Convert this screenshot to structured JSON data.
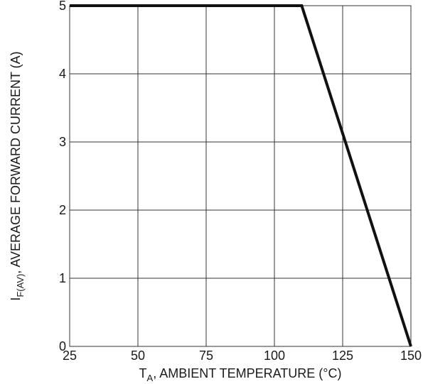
{
  "chart_data": {
    "type": "line",
    "xlabel": {
      "main": "T",
      "sub": "A",
      "rest": ", AMBIENT TEMPERATURE (°C)"
    },
    "ylabel": {
      "main": "I",
      "sub": "F(AV)",
      "rest": ", AVERAGE FORWARD CURRENT (A)"
    },
    "xlim": [
      25,
      150
    ],
    "ylim": [
      0,
      5
    ],
    "x_ticks": [
      25,
      50,
      75,
      100,
      125,
      150
    ],
    "y_ticks": [
      0,
      1,
      2,
      3,
      4,
      5
    ],
    "grid": true,
    "series": [
      {
        "x": [
          25,
          110,
          150
        ],
        "y": [
          5,
          5,
          0
        ],
        "color": "#111111"
      }
    ]
  }
}
